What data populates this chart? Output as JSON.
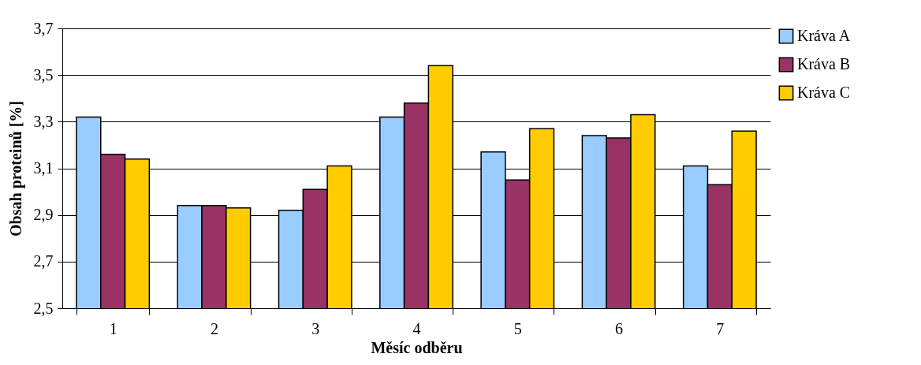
{
  "chart_data": {
    "type": "bar",
    "xlabel": "Měsíc odběru",
    "ylabel": "Obsah proteinů [%]",
    "categories": [
      "1",
      "2",
      "3",
      "4",
      "5",
      "6",
      "7"
    ],
    "series": [
      {
        "name": "Kráva A",
        "color": "#99ccff",
        "values": [
          3.32,
          2.94,
          2.92,
          3.32,
          3.17,
          3.24,
          3.11
        ]
      },
      {
        "name": "Kráva B",
        "color": "#993366",
        "values": [
          3.16,
          2.94,
          3.01,
          3.38,
          3.05,
          3.23,
          3.03
        ]
      },
      {
        "name": "Kráva C",
        "color": "#ffcc00",
        "values": [
          3.14,
          2.93,
          3.11,
          3.54,
          3.27,
          3.33,
          3.26
        ]
      }
    ],
    "ylim": [
      2.5,
      3.7
    ],
    "yticks": [
      {
        "value": 2.5,
        "label": "2,5"
      },
      {
        "value": 2.7,
        "label": "2,7"
      },
      {
        "value": 2.9,
        "label": "2,9"
      },
      {
        "value": 3.1,
        "label": "3,1"
      },
      {
        "value": 3.3,
        "label": "3,3"
      },
      {
        "value": 3.5,
        "label": "3,5"
      },
      {
        "value": 3.7,
        "label": "3,7"
      }
    ],
    "grid": "y",
    "legend": "right"
  }
}
